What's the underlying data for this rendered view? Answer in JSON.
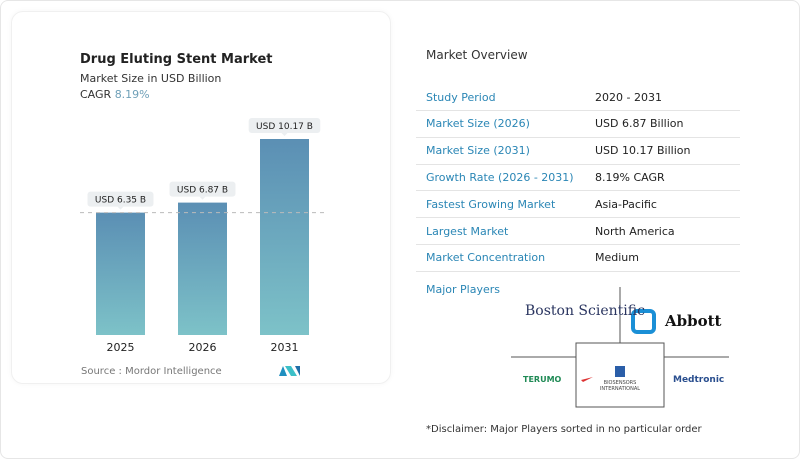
{
  "chart_data": {
    "type": "bar",
    "title": "Drug Eluting Stent Market",
    "subtitle": "Market Size in USD Billion",
    "cagr_label": "CAGR",
    "cagr_value": "8.19%",
    "categories": [
      "2025",
      "2026",
      "2031"
    ],
    "values": [
      6.35,
      6.87,
      10.17
    ],
    "data_labels": [
      "USD 6.35 B",
      "USD 6.87 B",
      "USD 10.17 B"
    ],
    "reference_line": 6.35,
    "grid": false,
    "bar_gradient": [
      "#5b8fb4",
      "#7dc2c8"
    ]
  },
  "source": "Source :  Mordor Intelligence",
  "overview": {
    "title": "Market Overview",
    "rows": [
      {
        "k": "Study Period",
        "v": "2020 - 2031"
      },
      {
        "k": "Market Size (2026)",
        "v": "USD 6.87 Billion"
      },
      {
        "k": "Market Size (2031)",
        "v": "USD 10.17 Billion"
      },
      {
        "k": "Growth Rate (2026 - 2031)",
        "v": "8.19% CAGR"
      },
      {
        "k": "Fastest Growing Market",
        "v": "Asia-Pacific"
      },
      {
        "k": "Largest Market",
        "v": "North America"
      },
      {
        "k": "Market Concentration",
        "v": "Medium"
      }
    ]
  },
  "players": {
    "title": "Major Players",
    "logos": [
      "Boston Scientific",
      "Abbott",
      "Terumo",
      "Biosensors International",
      "Medtronic"
    ],
    "disclaimer": "*Disclaimer: Major Players sorted in no particular order"
  }
}
